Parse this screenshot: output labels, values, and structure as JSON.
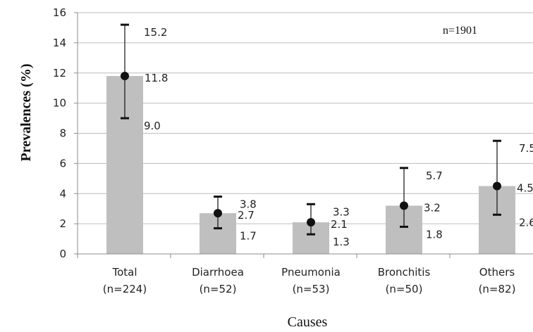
{
  "chart_data": {
    "type": "bar",
    "title": "",
    "xlabel": "Causes",
    "ylabel": "Prevalences (%)",
    "annotation": "n=1901",
    "ylim": [
      0,
      16
    ],
    "yticks": [
      "0",
      "2",
      "4",
      "6",
      "8",
      "10",
      "12",
      "14",
      "16"
    ],
    "grid": true,
    "categories": [
      {
        "name": "Total",
        "n": "(n=224)"
      },
      {
        "name": "Diarrhoea",
        "n": "(n=52)"
      },
      {
        "name": "Pneumonia",
        "n": "(n=53)"
      },
      {
        "name": "Bronchitis",
        "n": "(n=50)"
      },
      {
        "name": "Others",
        "n": "(n=82)"
      }
    ],
    "values": [
      11.8,
      2.7,
      2.1,
      3.2,
      4.5
    ],
    "value_labels": [
      "11.8",
      "2.7",
      "2.1",
      "3.2",
      "4.5"
    ],
    "upper": [
      15.2,
      3.8,
      3.3,
      5.7,
      7.5
    ],
    "upper_labels": [
      "15.2",
      "3.8",
      "3.3",
      "5.7",
      "7.5"
    ],
    "lower": [
      9.0,
      1.7,
      1.3,
      1.8,
      2.6
    ],
    "lower_labels": [
      "9.0",
      "1.7",
      "1.3",
      "1.8",
      "2.6"
    ],
    "colors": {
      "bar": "#bfbfbf",
      "grid": "#bdbdbd",
      "axis": "#8c8c8c",
      "marker": "#111111"
    }
  }
}
